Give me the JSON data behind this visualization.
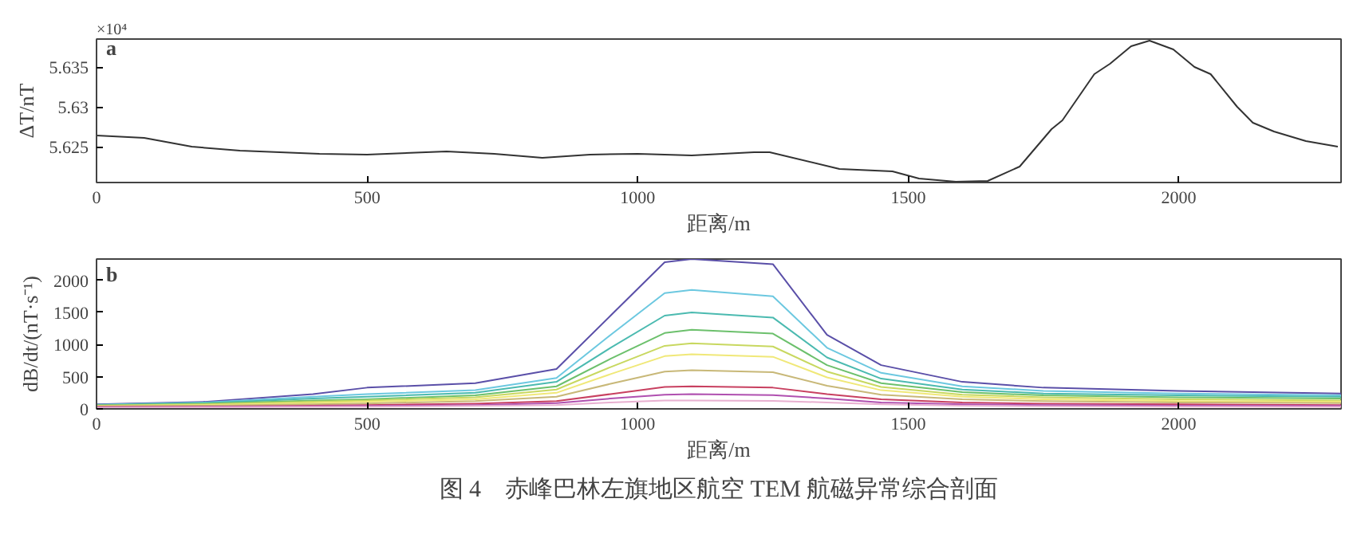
{
  "chart_data": [
    {
      "type": "line",
      "xlabel": "距离/m",
      "ylabel": "ΔT/nT",
      "annotations": [
        "a",
        "×10⁴"
      ],
      "grid": false,
      "xlim": [
        0,
        2300
      ],
      "ylim": [
        5.6205,
        5.6385
      ],
      "xticks": [
        0,
        500,
        1000,
        1500,
        2000
      ],
      "yticks": [
        5.625,
        5.63,
        5.635
      ],
      "x": [
        0,
        88,
        176,
        265,
        412,
        500,
        647,
        735,
        824,
        912,
        1000,
        1100,
        1215,
        1244,
        1373,
        1471,
        1520,
        1588,
        1647,
        1706,
        1765,
        1785,
        1844,
        1873,
        1912,
        1946,
        1990,
        2029,
        2059,
        2108,
        2137,
        2176,
        2235,
        2294
      ],
      "series": [
        {
          "color": "#333333",
          "values": [
            5.6264,
            5.6261,
            5.625,
            5.6245,
            5.6241,
            5.624,
            5.6244,
            5.6241,
            5.6236,
            5.624,
            5.6241,
            5.6239,
            5.6243,
            5.6243,
            5.6222,
            5.6219,
            5.621,
            5.6206,
            5.6207,
            5.6225,
            5.6272,
            5.6283,
            5.6341,
            5.6354,
            5.6376,
            5.6383,
            5.6372,
            5.635,
            5.6341,
            5.63,
            5.628,
            5.6269,
            5.6257,
            5.625
          ]
        }
      ]
    },
    {
      "type": "line",
      "xlabel": "距离/m",
      "ylabel": "dB/dt/(nT·s⁻¹)",
      "annotations": [
        "b",
        "图 4　赤峰巴林左旗地区航空 TEM 航磁异常综合剖面"
      ],
      "grid": false,
      "xlim": [
        0,
        2300
      ],
      "ylim": [
        0,
        2330
      ],
      "xticks": [
        0,
        500,
        1000,
        1500,
        2000
      ],
      "yticks": [
        0,
        500,
        1000,
        1500,
        2000
      ],
      "x": [
        0,
        200,
        400,
        500,
        700,
        850,
        950,
        1050,
        1100,
        1250,
        1350,
        1450,
        1600,
        1750,
        2000,
        2300
      ],
      "series": [
        {
          "color": "#5a4fa8",
          "values": [
            70,
            110,
            230,
            330,
            400,
            620,
            1450,
            2280,
            2330,
            2250,
            1150,
            680,
            420,
            330,
            280,
            240
          ]
        },
        {
          "color": "#6cc8e0",
          "values": [
            65,
            100,
            190,
            230,
            290,
            480,
            1150,
            1800,
            1850,
            1750,
            950,
            560,
            350,
            280,
            240,
            210
          ]
        },
        {
          "color": "#4bbab0",
          "values": [
            60,
            90,
            160,
            190,
            250,
            420,
            950,
            1450,
            1500,
            1420,
            800,
            470,
            300,
            240,
            210,
            190
          ]
        },
        {
          "color": "#6cc06c",
          "values": [
            55,
            80,
            130,
            150,
            210,
            350,
            780,
            1180,
            1230,
            1170,
            680,
            400,
            260,
            210,
            180,
            160
          ]
        },
        {
          "color": "#c8d860",
          "values": [
            50,
            70,
            110,
            130,
            180,
            300,
            650,
            980,
            1020,
            970,
            580,
            340,
            220,
            180,
            150,
            130
          ]
        },
        {
          "color": "#f0e878",
          "values": [
            45,
            60,
            90,
            110,
            150,
            250,
            540,
            820,
            850,
            810,
            490,
            290,
            190,
            150,
            120,
            110
          ]
        },
        {
          "color": "#c8b878",
          "values": [
            40,
            50,
            70,
            85,
            120,
            190,
            390,
            580,
            600,
            570,
            360,
            220,
            150,
            120,
            100,
            90
          ]
        },
        {
          "color": "#c84060",
          "values": [
            30,
            35,
            50,
            60,
            80,
            120,
            230,
            340,
            350,
            330,
            230,
            150,
            100,
            80,
            70,
            60
          ]
        },
        {
          "color": "#b050b0",
          "values": [
            25,
            30,
            40,
            45,
            60,
            90,
            160,
            220,
            230,
            215,
            160,
            100,
            70,
            60,
            50,
            45
          ]
        },
        {
          "color": "#e8b0d0",
          "values": [
            20,
            25,
            30,
            35,
            45,
            60,
            100,
            130,
            130,
            125,
            100,
            70,
            50,
            40,
            35,
            30
          ]
        }
      ]
    }
  ]
}
